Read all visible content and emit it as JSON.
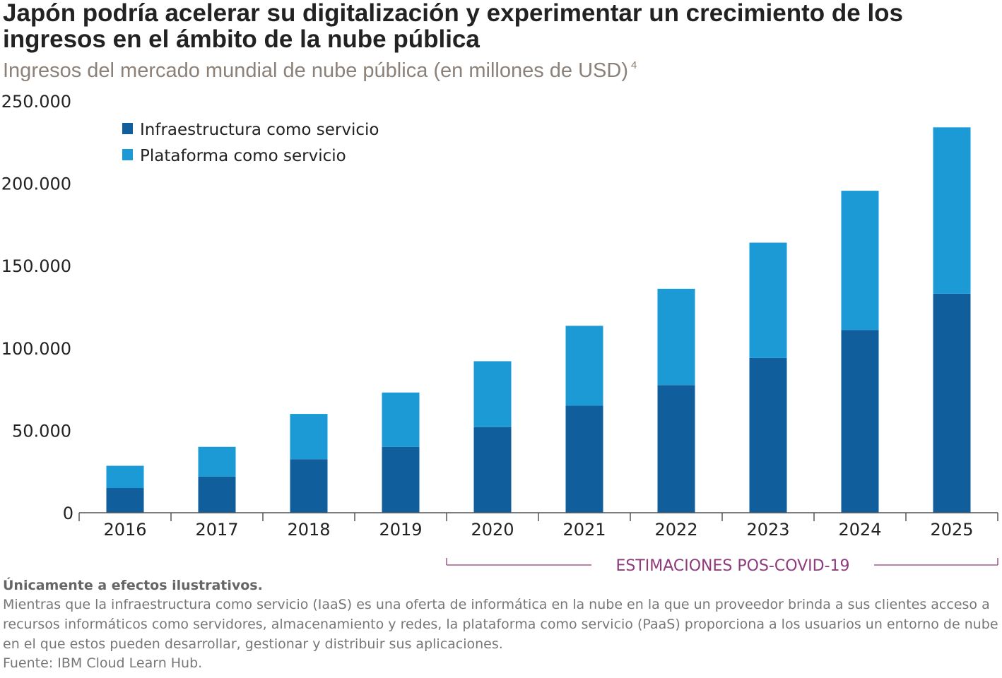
{
  "header": {
    "title": "Japón podría acelerar su digitalización y experimentar un crecimiento de los ingresos en el ámbito de la nube pública",
    "subtitle": "Ingresos del mercado mundial de nube pública (en millones de USD)",
    "footnote_marker": "4"
  },
  "chart_data": {
    "type": "bar",
    "stacked": true,
    "categories": [
      "2016",
      "2017",
      "2018",
      "2019",
      "2020",
      "2021",
      "2022",
      "2023",
      "2024",
      "2025"
    ],
    "series": [
      {
        "name": "Infraestructura como servicio",
        "color": "#115e9c",
        "values": [
          15000,
          22000,
          32500,
          40000,
          52000,
          65000,
          77500,
          94000,
          111000,
          133000
        ]
      },
      {
        "name": "Plataforma como servicio",
        "color": "#1b9ad6",
        "values": [
          13500,
          18000,
          27500,
          33000,
          40000,
          48500,
          58500,
          70000,
          84500,
          101000
        ]
      }
    ],
    "y_ticks": [
      "0",
      "50.000",
      "100.000",
      "150.000",
      "200.000",
      "250.000"
    ],
    "y_tick_values": [
      0,
      50000,
      100000,
      150000,
      200000,
      250000
    ],
    "ylim": [
      0,
      250000
    ],
    "legend_position": "top-left",
    "grid": false,
    "annotation": {
      "text": "ESTIMACIONES POS-COVID-19",
      "from_category": "2020",
      "to_category": "2025",
      "color": "#8f3a7c"
    }
  },
  "footer": {
    "disclaimer": "Únicamente a efectos ilustrativos.",
    "description": "Mientras que la infraestructura como servicio (IaaS) es una oferta de informática en la nube en la que un proveedor brinda a sus clientes acceso a recursos informáticos como servidores, almacenamiento y redes, la plataforma como servicio (PaaS) proporciona a los usuarios un entorno de nube en el que estos pueden desarrollar, gestionar y distribuir sus aplicaciones.",
    "source": "Fuente: IBM Cloud Learn Hub."
  }
}
